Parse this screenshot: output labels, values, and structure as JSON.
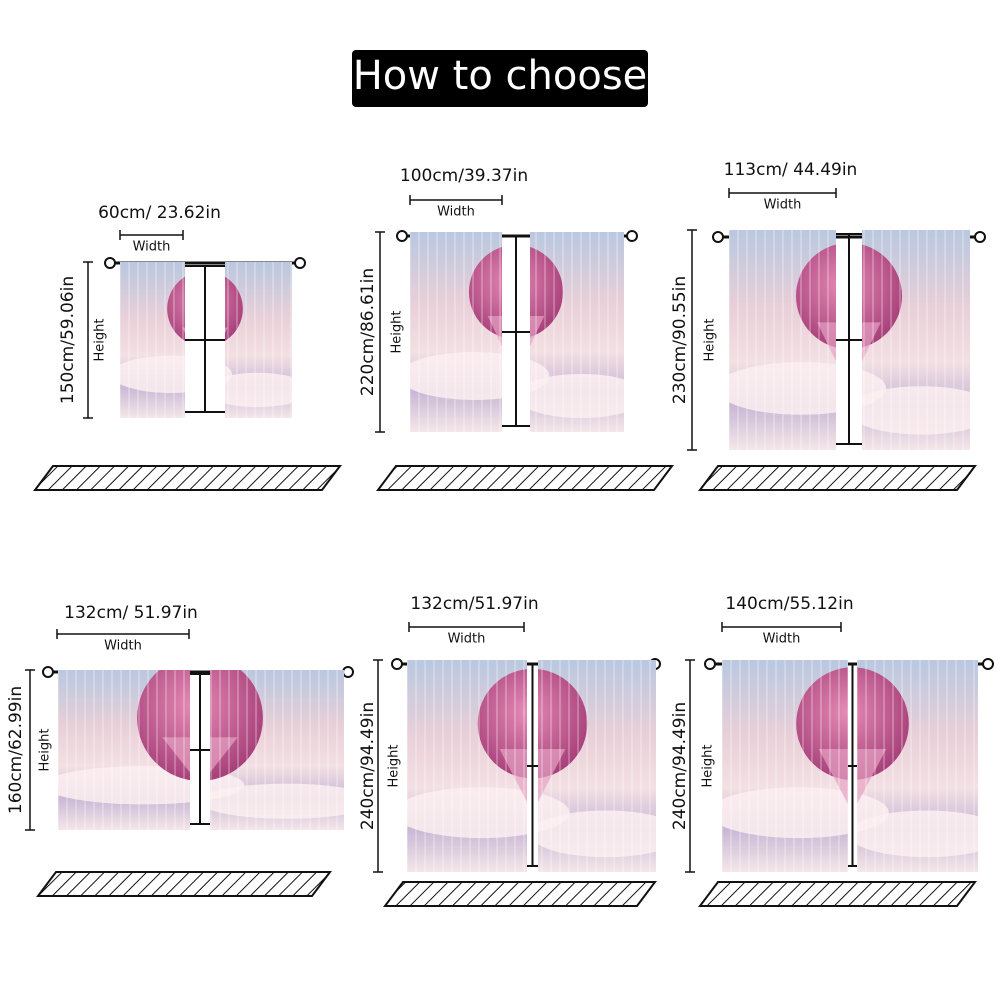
{
  "title": "How to choose",
  "panels": [
    {
      "width_label": "60cm/ 23.62in",
      "width_caption": "Width",
      "height_label": "150cm/59.06in",
      "height_caption": "Height"
    },
    {
      "width_label": "100cm/39.37in",
      "width_caption": "Width",
      "height_label": "220cm/86.61in",
      "height_caption": "Height"
    },
    {
      "width_label": "113cm/ 44.49in",
      "width_caption": "Width",
      "height_label": "230cm/90.55in",
      "height_caption": "Height"
    },
    {
      "width_label": "132cm/ 51.97in",
      "width_caption": "Width",
      "height_label": "160cm/62.99in",
      "height_caption": "Height"
    },
    {
      "width_label": "132cm/51.97in",
      "width_caption": "Width",
      "height_label": "240cm/94.49in",
      "height_caption": "Height"
    },
    {
      "width_label": "140cm/55.12in",
      "width_caption": "Width",
      "height_label": "240cm/94.49in",
      "height_caption": "Height"
    }
  ]
}
